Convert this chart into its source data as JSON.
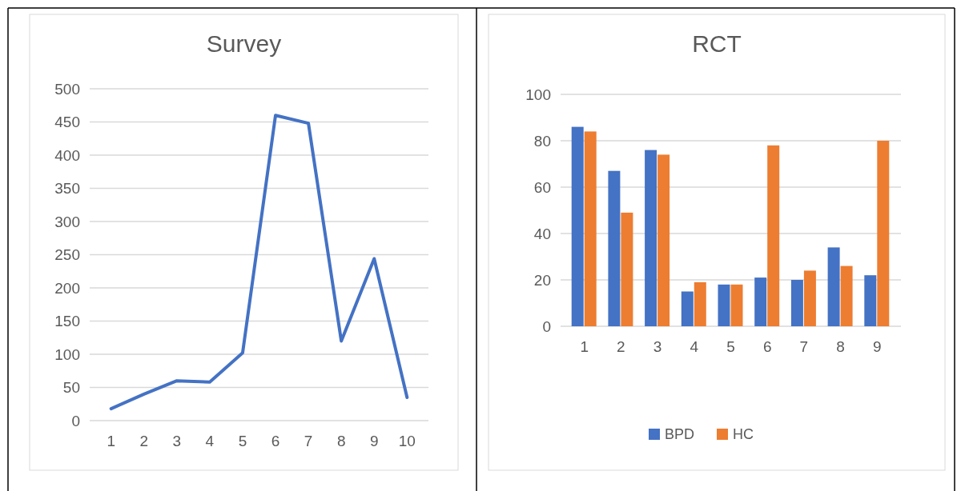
{
  "chart_data": [
    {
      "type": "line",
      "title": "Survey",
      "categories": [
        "1",
        "2",
        "3",
        "4",
        "5",
        "6",
        "7",
        "8",
        "9",
        "10"
      ],
      "series": [
        {
          "color": "#4472c4",
          "values": [
            18,
            40,
            60,
            58,
            102,
            460,
            448,
            120,
            244,
            35
          ]
        }
      ],
      "ylim": [
        0,
        500
      ],
      "yticks": [
        0,
        50,
        100,
        150,
        200,
        250,
        300,
        350,
        400,
        450,
        500
      ],
      "grid": "y",
      "marker": "none",
      "line_style": "solid"
    },
    {
      "type": "bar",
      "title": "RCT",
      "categories": [
        "1",
        "2",
        "3",
        "4",
        "5",
        "6",
        "7",
        "8",
        "9"
      ],
      "series": [
        {
          "name": "BPD",
          "color": "#4472c4",
          "values": [
            86,
            67,
            76,
            15,
            18,
            21,
            20,
            34,
            22
          ]
        },
        {
          "name": "HC",
          "color": "#ed7d31",
          "values": [
            84,
            49,
            74,
            19,
            18,
            78,
            24,
            26,
            80
          ]
        }
      ],
      "ylim": [
        0,
        100
      ],
      "yticks": [
        0,
        20,
        40,
        60,
        80,
        100
      ],
      "grid": "y",
      "legend": "bottom"
    }
  ]
}
